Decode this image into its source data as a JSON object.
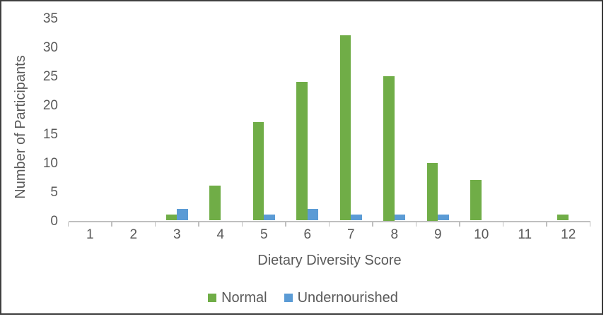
{
  "chart_data": {
    "type": "bar",
    "title": "",
    "xlabel": "Dietary Diversity Score",
    "ylabel": "Number of Participants",
    "categories": [
      "1",
      "2",
      "3",
      "4",
      "5",
      "6",
      "7",
      "8",
      "9",
      "10",
      "11",
      "12"
    ],
    "series": [
      {
        "name": "Normal",
        "color": "#70AD47",
        "values": [
          0,
          0,
          1,
          6,
          17,
          24,
          32,
          25,
          10,
          7,
          0,
          1
        ]
      },
      {
        "name": "Undernourished",
        "color": "#5B9BD5",
        "values": [
          0,
          0,
          2,
          0,
          1,
          2,
          1,
          1,
          1,
          0,
          0,
          0
        ]
      }
    ],
    "ylim": [
      0,
      35
    ],
    "ytick_step": 5,
    "ytick_labels": [
      "0",
      "5",
      "10",
      "15",
      "20",
      "25",
      "30",
      "35"
    ],
    "grid": false,
    "legend_position": "bottom",
    "axis_color": "#BFBFBF",
    "text_color": "#595959",
    "frame_border_color": "#3F3F3F"
  }
}
